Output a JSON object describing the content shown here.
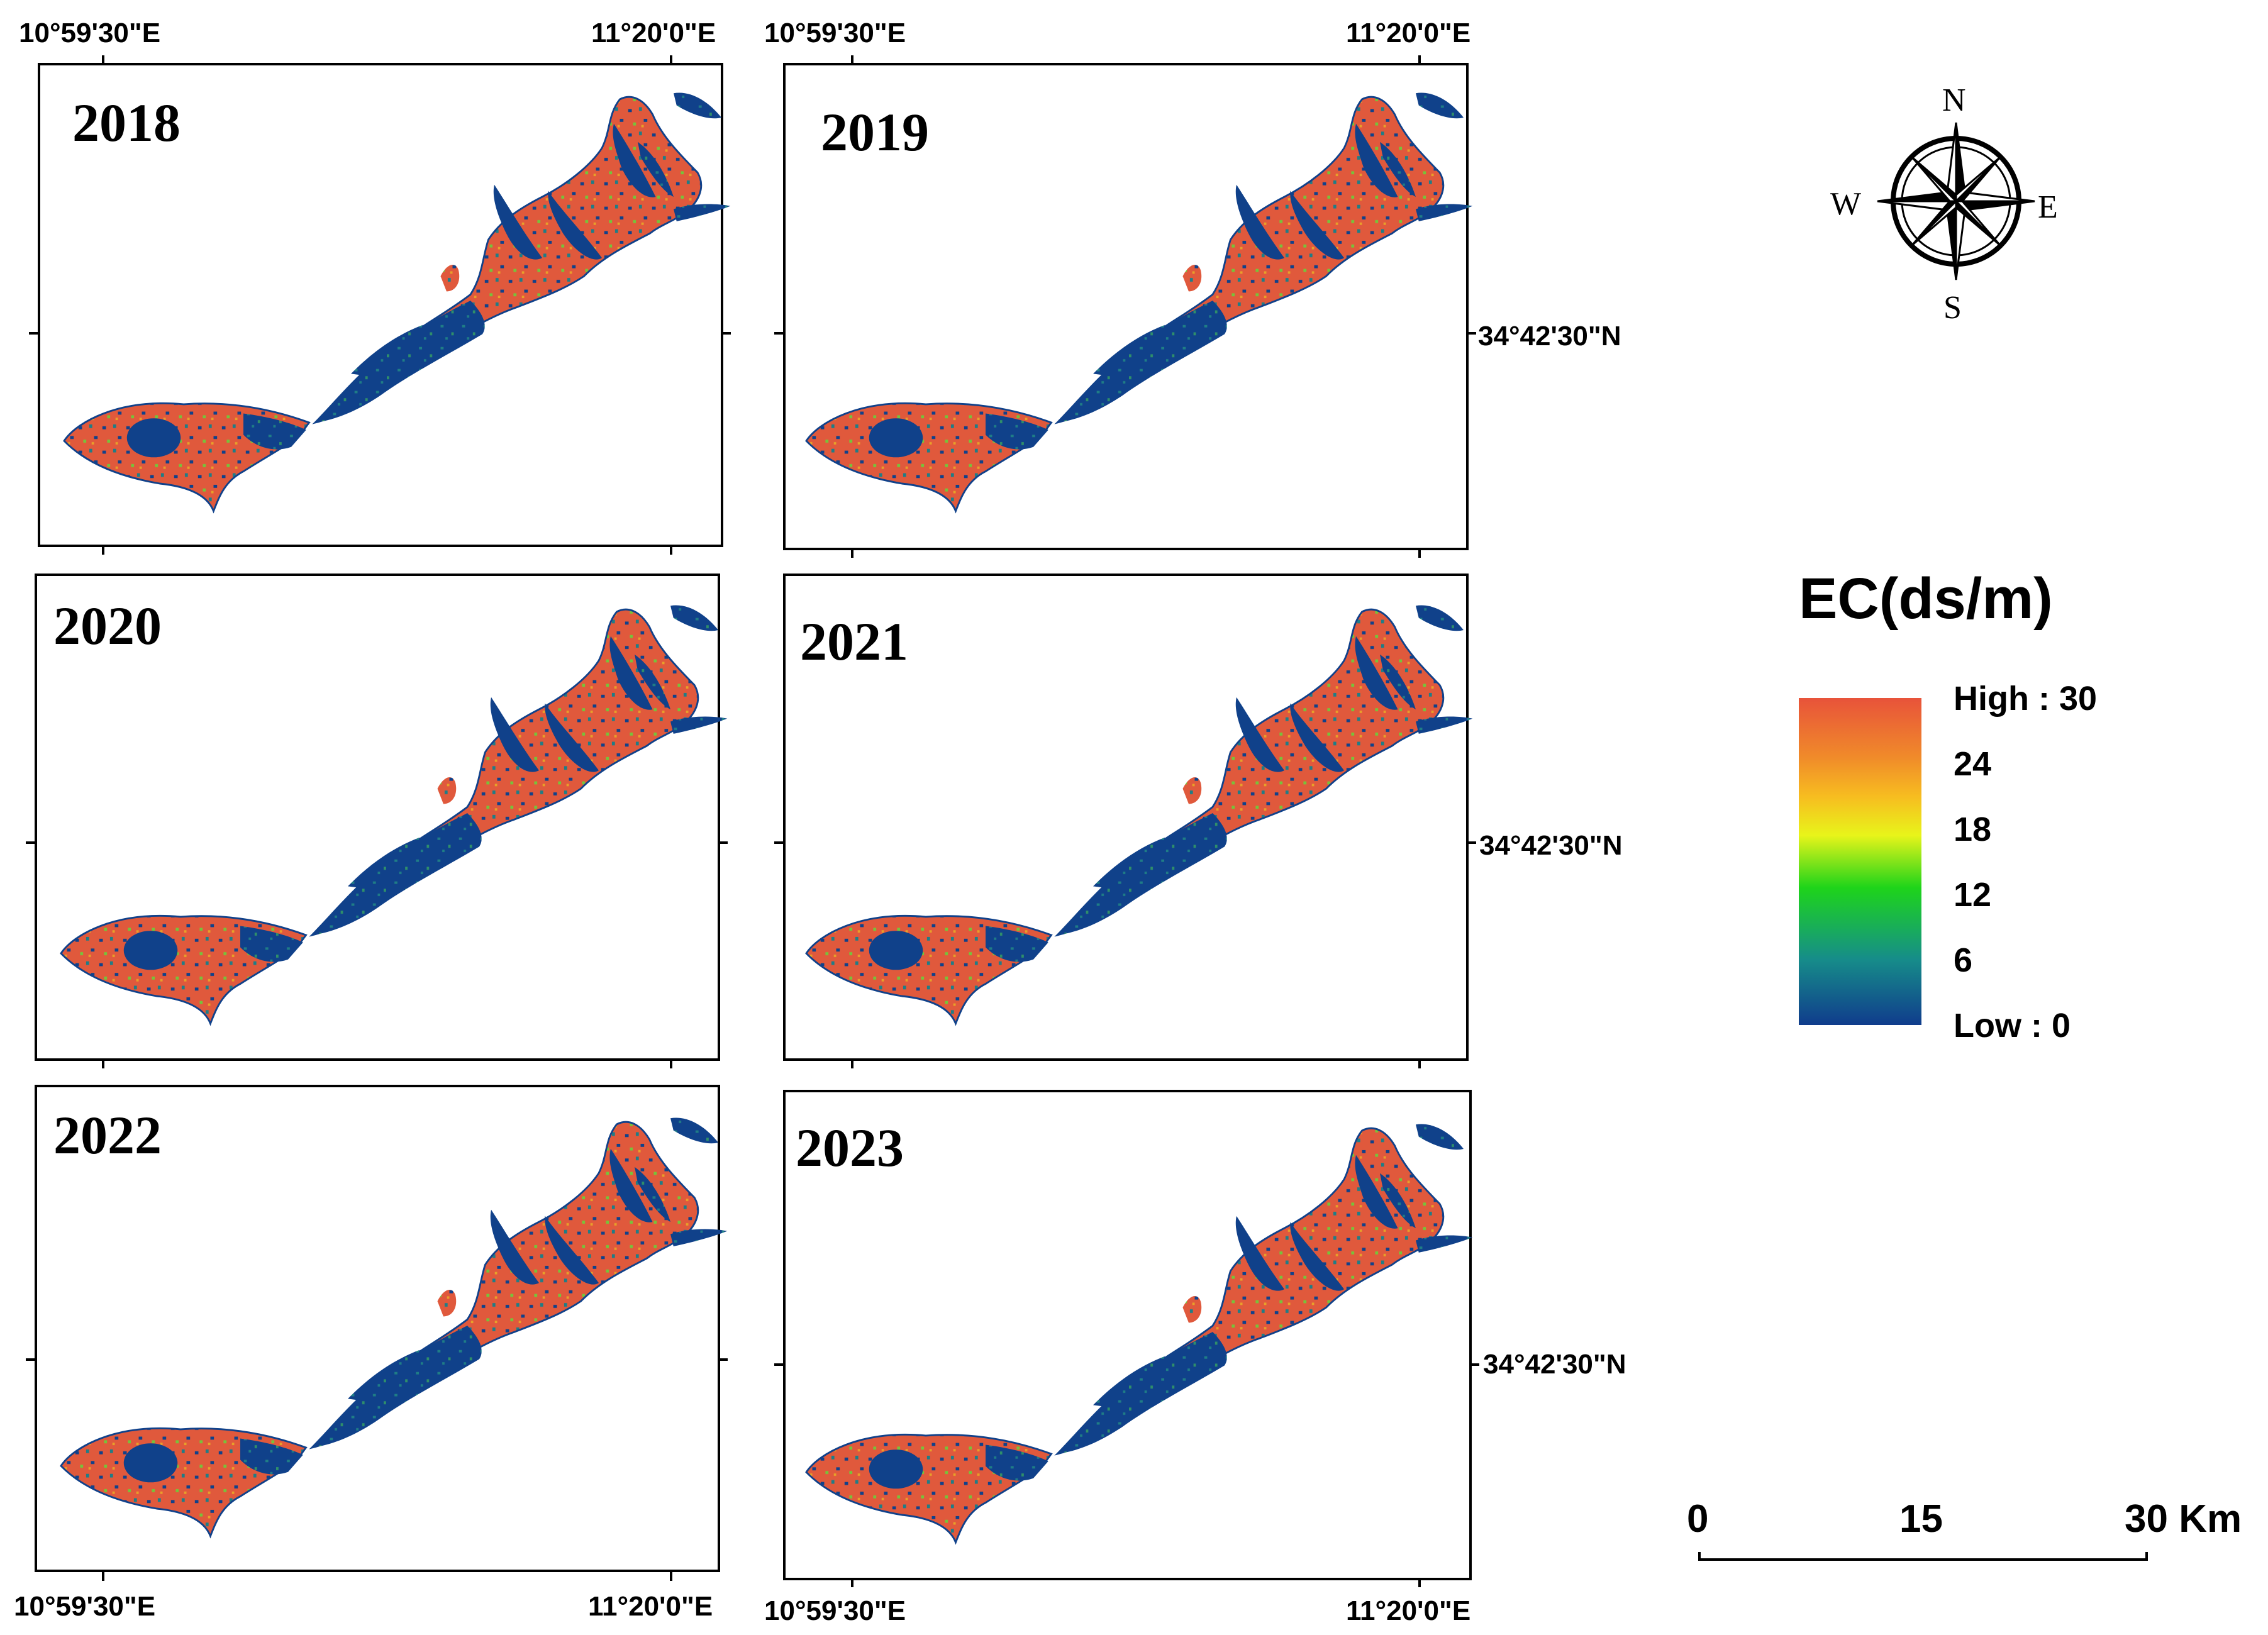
{
  "panels": [
    {
      "year": "2018",
      "top_lon_left": "10°59'30\"E",
      "top_lon_right": "11°20'0\"E"
    },
    {
      "year": "2019",
      "top_lon_left": "10°59'30\"E",
      "top_lon_right": "11°20'0\"E",
      "lat": "34°42'30\"N"
    },
    {
      "year": "2020"
    },
    {
      "year": "2021",
      "lat": "34°42'30\"N"
    },
    {
      "year": "2022",
      "bottom_lon_left": "10°59'30\"E",
      "bottom_lon_right": "11°20'0\"E"
    },
    {
      "year": "2023",
      "lat": "34°42'30\"N",
      "bottom_lon_left": "10°59'30\"E",
      "bottom_lon_right": "11°20'0\"E"
    }
  ],
  "legend": {
    "title": "EC(ds/m)",
    "labels": [
      "High : 30",
      "24",
      "18",
      "12",
      "6",
      "Low : 0"
    ],
    "colors": [
      "#e8533a",
      "#f7a11c",
      "#e8f41a",
      "#1ed41a",
      "#168c8a",
      "#103c8c"
    ]
  },
  "compass": {
    "n": "N",
    "s": "S",
    "e": "E",
    "w": "W"
  },
  "scale": {
    "labels": [
      "0",
      "15",
      "30 Km"
    ]
  },
  "colors": {
    "low": "#10418a",
    "high": "#e0593c",
    "mid": "#78c23a",
    "teal": "#1f7d86"
  }
}
